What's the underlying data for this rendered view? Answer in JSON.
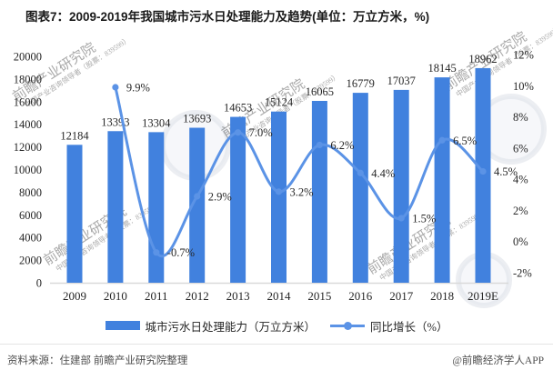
{
  "title": "图表7：2009-2019年我国城市污水日处理能力及趋势(单位：万立方米，%)",
  "chart_data": {
    "type": "bar",
    "categories": [
      "2009",
      "2010",
      "2011",
      "2012",
      "2013",
      "2014",
      "2015",
      "2016",
      "2017",
      "2018",
      "2019E"
    ],
    "series": [
      {
        "name": "城市污水日处理能力（万立方米）",
        "type": "bar",
        "axis": "left",
        "values": [
          12184,
          13393,
          13304,
          13693,
          14653,
          15124,
          16065,
          16779,
          17037,
          18145,
          18962
        ]
      },
      {
        "name": "同比增长（%）",
        "type": "line",
        "axis": "right",
        "values": [
          null,
          9.9,
          -0.7,
          2.9,
          7.0,
          3.2,
          6.2,
          4.4,
          1.5,
          6.5,
          4.5
        ],
        "point_labels": [
          "",
          "9.9%",
          "-0.7%",
          "2.9%",
          "7.0%",
          "3.2%",
          "6.2%",
          "4.4%",
          "1.5%",
          "6.5%",
          "4.5%"
        ]
      }
    ],
    "left_axis": {
      "min": 0,
      "max": 20000,
      "step": 2000
    },
    "right_axis": {
      "min": -2,
      "max": 12,
      "step": 2,
      "suffix": "%"
    },
    "grid": false,
    "legend_position": "bottom",
    "title": "图表7：2009-2019年我国城市污水日处理能力及趋势(单位：万立方米，%)"
  },
  "legend": {
    "bar_label": "城市污水日处理能力（万立方米）",
    "line_label": "同比增长（%）"
  },
  "footer": {
    "source": "资料来源：住建部 前瞻产业研究院整理",
    "credit": "@前瞻经济学人APP"
  },
  "watermarks": {
    "text": "前瞻产业研究院",
    "subtext": "中国产业咨询领导者（股票：839599）"
  },
  "colors": {
    "bar": "#4181de",
    "line": "#5b93e6",
    "axis_line": "#d9d9d9",
    "label_text": "#262626",
    "watermark": "#c2c8d2",
    "watermark_sub": "#cf9a93"
  }
}
